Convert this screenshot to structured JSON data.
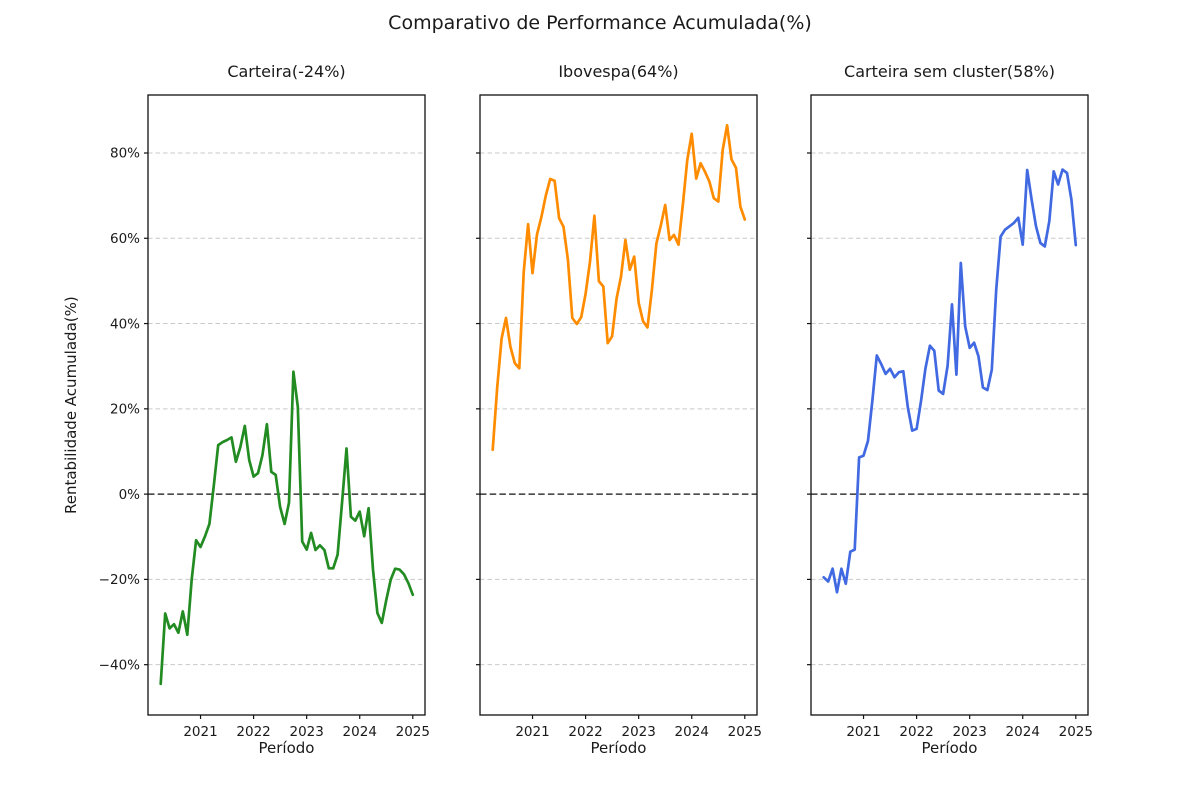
{
  "figure": {
    "title": "Comparativo de Performance Acumulada(%)"
  },
  "axes": {
    "xlabel": "Período",
    "ylabel": "Rentabilidade Acumulada(%)",
    "yticks": [
      "80%",
      "60%",
      "40%",
      "20%",
      "0%",
      "−20%",
      "−40%"
    ],
    "ytick_values": [
      80,
      60,
      40,
      20,
      0,
      -20,
      -40
    ],
    "xticks": [
      2021,
      2022,
      2023,
      2024,
      2025
    ],
    "xlim": [
      2020.01,
      2025.23
    ],
    "ylim": [
      -51.8,
      93.6
    ],
    "grid_color": "#c9c9c9",
    "zero_line_color": "#111111",
    "grid_on": true,
    "legend": "none"
  },
  "chart_data": [
    {
      "type": "line",
      "title": "Carteira(-24%)",
      "name": "Carteira",
      "final_value_label": "-24%",
      "color": "#228B22",
      "unit": "%",
      "x_start": 2020.25,
      "x_step": 0.0833333,
      "values": [
        -44.5,
        -28.0,
        -31.5,
        -30.5,
        -32.5,
        -27.5,
        -33.0,
        -20.0,
        -10.8,
        -12.4,
        -9.9,
        -7.0,
        2.0,
        11.5,
        12.2,
        12.7,
        13.3,
        7.6,
        11.0,
        16.0,
        8.0,
        4.1,
        4.9,
        9.1,
        16.4,
        5.2,
        4.5,
        -3.0,
        -7.0,
        -2.0,
        28.7,
        20.5,
        -11.1,
        -13.0,
        -9.1,
        -13.1,
        -12.0,
        -13.1,
        -17.4,
        -17.4,
        -14.2,
        -2.1,
        10.7,
        -5.3,
        -6.2,
        -4.1,
        -9.9,
        -3.3,
        -17.7,
        -27.9,
        -30.2,
        -24.8,
        -20.1,
        -17.5,
        -17.7,
        -18.8,
        -20.9,
        -23.6
      ]
    },
    {
      "type": "line",
      "title": "Ibovespa(64%)",
      "name": "Ibovespa",
      "final_value_label": "64%",
      "color": "#FF8C00",
      "unit": "%",
      "x_start": 2020.25,
      "x_step": 0.0833333,
      "values": [
        10.4,
        25.0,
        36.5,
        41.3,
        34.6,
        30.7,
        29.5,
        52.0,
        63.3,
        51.8,
        60.9,
        65.0,
        70.0,
        73.9,
        73.5,
        64.7,
        62.7,
        55.0,
        41.3,
        39.9,
        41.5,
        47.0,
        54.5,
        65.3,
        49.9,
        48.7,
        35.4,
        37.0,
        45.9,
        51.0,
        59.6,
        52.6,
        55.7,
        44.8,
        40.5,
        39.1,
        47.9,
        58.8,
        63.0,
        67.8,
        59.6,
        60.8,
        58.5,
        68.0,
        78.4,
        84.5,
        74.0,
        77.6,
        75.6,
        73.3,
        69.4,
        68.6,
        80.7,
        86.5,
        78.5,
        76.5,
        67.4,
        64.4
      ]
    },
    {
      "type": "line",
      "title": "Carteira sem cluster(58%)",
      "name": "Carteira sem cluster",
      "final_value_label": "58%",
      "color": "#4169E1",
      "unit": "%",
      "x_start": 2020.25,
      "x_step": 0.0833333,
      "values": [
        -19.5,
        -20.5,
        -17.5,
        -23.0,
        -17.5,
        -21.0,
        -13.5,
        -13.0,
        8.6,
        9.0,
        12.5,
        22.0,
        32.5,
        30.5,
        28.2,
        29.4,
        27.4,
        28.6,
        28.8,
        20.4,
        14.9,
        15.3,
        21.8,
        29.4,
        34.8,
        33.6,
        24.3,
        23.5,
        30.1,
        44.5,
        28.0,
        54.2,
        39.3,
        34.3,
        35.5,
        32.3,
        25.0,
        24.4,
        29.2,
        47.9,
        60.4,
        62.0,
        62.8,
        63.6,
        64.8,
        58.5,
        76.0,
        69.1,
        62.8,
        58.9,
        58.1,
        64.0,
        75.7,
        72.6,
        76.1,
        75.3,
        69.1,
        58.4
      ]
    }
  ]
}
